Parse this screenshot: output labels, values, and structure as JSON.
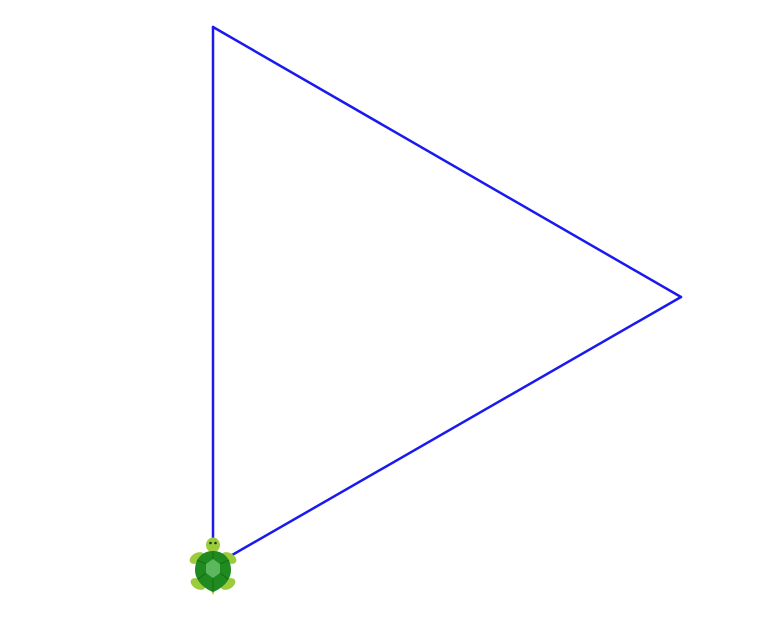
{
  "canvas": {
    "background": "#ffffff"
  },
  "drawing": {
    "shape": "equilateral-triangle",
    "line_color": "#1a1aee"
  },
  "turtle": {
    "icon": "turtle-icon",
    "heading": "up",
    "colors": {
      "shell_dark": "#1f8a1f",
      "shell_light": "#5cb85c",
      "body": "#9ccc3c",
      "eyes": "#1a3a1a"
    }
  }
}
